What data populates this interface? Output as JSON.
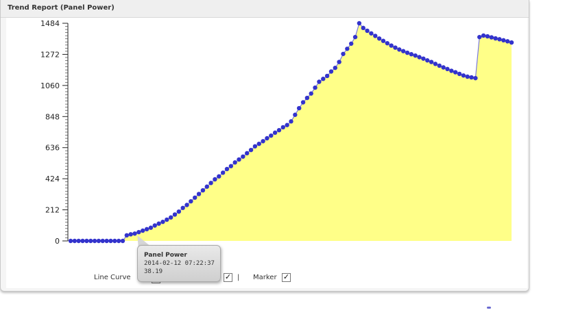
{
  "panel": {
    "title": "Trend Report (Panel Power)"
  },
  "controls": {
    "line_curve_label": "Line Curve",
    "line_curve_checked": false,
    "second_checked": true,
    "separator": "|",
    "marker_label": "Marker",
    "marker_checked": true
  },
  "tooltip": {
    "title": "Panel Power",
    "datetime": "2014-02-12 07:22:37",
    "value": "38.19"
  },
  "colors": {
    "fill": "#ffff88",
    "line": "#7777dd",
    "marker": "#3333cc"
  },
  "chart_data": {
    "type": "area",
    "title": "Trend Report (Panel Power)",
    "series": [
      {
        "name": "Panel Power",
        "values": [
          0,
          0,
          0,
          0,
          0,
          0,
          0,
          0,
          0,
          0,
          0,
          0,
          0,
          0,
          38.19,
          45,
          50,
          60,
          70,
          80,
          90,
          105,
          118,
          130,
          145,
          160,
          180,
          200,
          225,
          245,
          270,
          295,
          320,
          345,
          370,
          395,
          420,
          440,
          465,
          490,
          510,
          535,
          555,
          575,
          598,
          620,
          645,
          662,
          680,
          700,
          718,
          738,
          755,
          775,
          790,
          815,
          860,
          905,
          945,
          975,
          1005,
          1045,
          1085,
          1105,
          1125,
          1155,
          1180,
          1220,
          1275,
          1310,
          1345,
          1390,
          1484,
          1452,
          1433,
          1415,
          1398,
          1380,
          1364,
          1348,
          1332,
          1318,
          1305,
          1294,
          1283,
          1273,
          1264,
          1253,
          1243,
          1231,
          1220,
          1207,
          1195,
          1183,
          1172,
          1160,
          1150,
          1139,
          1128,
          1120,
          1115,
          1110,
          1390,
          1400,
          1395,
          1388,
          1381,
          1375,
          1368,
          1361,
          1353
        ]
      }
    ],
    "xlabel": "",
    "ylabel": "",
    "yticks": [
      0,
      212,
      424,
      636,
      848,
      1060,
      1272,
      1484
    ],
    "ylim": [
      0,
      1484
    ],
    "marker": true,
    "grid": false,
    "legend": "none"
  }
}
